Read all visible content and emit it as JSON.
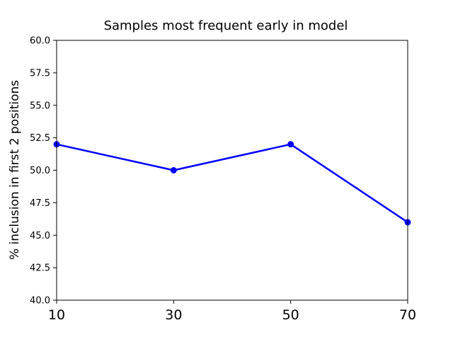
{
  "chart_data": {
    "type": "line",
    "title": "Samples most frequent early in model",
    "xlabel": "",
    "ylabel": "% inclusion in first 2 positions",
    "x": [
      10,
      30,
      50,
      70
    ],
    "xticks": [
      "10",
      "30",
      "50",
      "70"
    ],
    "xlim": [
      10,
      70
    ],
    "ylim": [
      40.0,
      60.0
    ],
    "yticks": [
      "40.0",
      "42.5",
      "45.0",
      "47.5",
      "50.0",
      "52.5",
      "55.0",
      "57.5",
      "60.0"
    ],
    "series": [
      {
        "values": [
          52.0,
          50.0,
          52.0,
          46.0
        ],
        "color": "#0000ff",
        "marker": "circle"
      }
    ],
    "grid": false,
    "legend": "none"
  }
}
